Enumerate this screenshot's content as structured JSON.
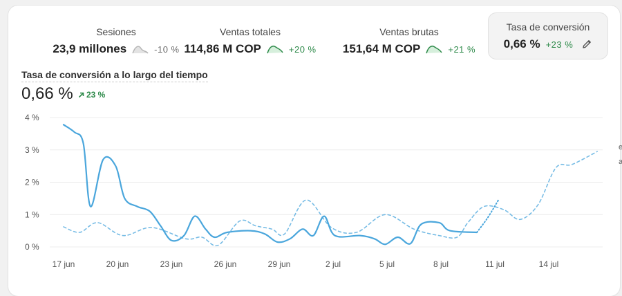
{
  "metrics": [
    {
      "label": "Sesiones",
      "value": "23,9 millones",
      "delta": "-10 %",
      "trend": "down",
      "spark_color": "#b5b5b5"
    },
    {
      "label": "Ventas totales",
      "value": "114,86 M COP",
      "delta": "+20 %",
      "trend": "up",
      "spark_color": "#2e8a4a"
    },
    {
      "label": "Ventas brutas",
      "value": "151,64 M COP",
      "delta": "+21 %",
      "trend": "up",
      "spark_color": "#2e8a4a"
    },
    {
      "label": "Tasa de conversión",
      "value": "0,66 %",
      "delta": "+23 %",
      "trend": "up",
      "spark_color": "#2e8a4a",
      "selected": true
    }
  ],
  "chart_header": {
    "title": "Tasa de conversión a lo largo del tiempo",
    "value": "0,66 %",
    "delta": "23 %",
    "delta_icon": "arrow-up-right-icon"
  },
  "edge_marks": [
    "e",
    "a"
  ],
  "colors": {
    "series": "#4aa6dc",
    "grid": "#ececec",
    "positive": "#2e8a4a"
  },
  "chart_data": {
    "type": "line",
    "y_ticks": [
      "0 %",
      "1 %",
      "2 %",
      "3 %",
      "4 %"
    ],
    "ylim": [
      0,
      4
    ],
    "x_tick_labels": [
      "17 jun",
      "20 jun",
      "23 jun",
      "26 jun",
      "29 jun",
      "2 jul",
      "5 jul",
      "8 jul",
      "11 jul",
      "14 jul"
    ],
    "x_tick_positions": [
      0,
      3,
      6,
      9,
      12,
      15,
      18,
      21,
      24,
      27
    ],
    "xlim": [
      0,
      30
    ],
    "series": [
      {
        "style": "solid",
        "values": [
          [
            0,
            3.78
          ],
          [
            0.6,
            3.55
          ],
          [
            1.1,
            3.2
          ],
          [
            1.5,
            1.25
          ],
          [
            2.2,
            2.7
          ],
          [
            2.9,
            2.5
          ],
          [
            3.4,
            1.5
          ],
          [
            4.1,
            1.25
          ],
          [
            4.8,
            1.1
          ],
          [
            5.4,
            0.65
          ],
          [
            6.0,
            0.2
          ],
          [
            6.7,
            0.35
          ],
          [
            7.3,
            0.95
          ],
          [
            7.9,
            0.55
          ],
          [
            8.4,
            0.3
          ],
          [
            9.1,
            0.45
          ],
          [
            10.4,
            0.5
          ],
          [
            11.2,
            0.4
          ],
          [
            11.9,
            0.15
          ],
          [
            12.6,
            0.25
          ],
          [
            13.3,
            0.55
          ],
          [
            13.9,
            0.35
          ],
          [
            14.5,
            0.95
          ],
          [
            15.1,
            0.35
          ],
          [
            16.5,
            0.35
          ],
          [
            17.3,
            0.25
          ],
          [
            17.9,
            0.08
          ],
          [
            18.6,
            0.3
          ],
          [
            19.3,
            0.1
          ],
          [
            19.9,
            0.7
          ],
          [
            20.9,
            0.75
          ],
          [
            21.5,
            0.5
          ],
          [
            23.0,
            0.45
          ]
        ]
      },
      {
        "style": "dotted",
        "values": [
          [
            23.0,
            0.45
          ],
          [
            23.6,
            0.9
          ],
          [
            24.2,
            1.45
          ]
        ]
      },
      {
        "style": "dashed",
        "values": [
          [
            0,
            0.62
          ],
          [
            0.9,
            0.45
          ],
          [
            1.9,
            0.75
          ],
          [
            3.3,
            0.35
          ],
          [
            4.9,
            0.6
          ],
          [
            6.8,
            0.25
          ],
          [
            7.7,
            0.3
          ],
          [
            8.6,
            0.05
          ],
          [
            9.8,
            0.8
          ],
          [
            10.7,
            0.65
          ],
          [
            11.6,
            0.55
          ],
          [
            12.3,
            0.4
          ],
          [
            13.5,
            1.45
          ],
          [
            14.9,
            0.6
          ],
          [
            16.3,
            0.45
          ],
          [
            17.9,
            1.0
          ],
          [
            19.5,
            0.55
          ],
          [
            20.9,
            0.35
          ],
          [
            21.9,
            0.3
          ],
          [
            22.5,
            0.75
          ],
          [
            23.4,
            1.25
          ],
          [
            24.5,
            1.15
          ],
          [
            25.4,
            0.85
          ],
          [
            26.4,
            1.3
          ],
          [
            27.4,
            2.45
          ],
          [
            28.3,
            2.55
          ],
          [
            29.7,
            2.95
          ]
        ]
      }
    ]
  }
}
